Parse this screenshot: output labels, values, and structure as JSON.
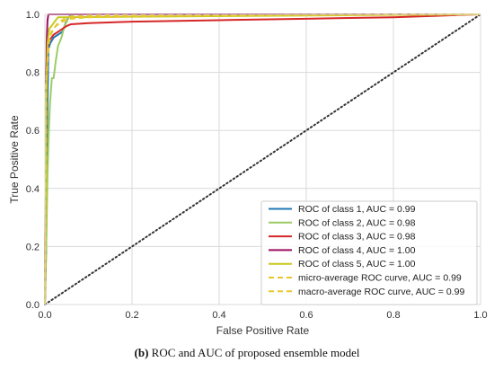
{
  "chart_data": {
    "type": "line",
    "xlabel": "False Positive Rate",
    "ylabel": "True Positive Rate",
    "xlim": [
      0.0,
      1.0
    ],
    "ylim": [
      0.0,
      1.0
    ],
    "xticks": [
      "0.0",
      "0.2",
      "0.4",
      "0.6",
      "0.8",
      "1.0"
    ],
    "yticks": [
      "0.0",
      "0.2",
      "0.4",
      "0.6",
      "0.8",
      "1.0"
    ],
    "grid": true,
    "legend_position": "bottom-right",
    "series": [
      {
        "name": "ROC of class 1, AUC = 0.99",
        "color": "#1f77b4",
        "dash": "solid",
        "x": [
          0,
          0.003,
          0.005,
          0.008,
          0.012,
          0.02,
          0.03,
          0.04,
          0.05,
          0.06,
          1.0
        ],
        "y": [
          0,
          0.2,
          0.6,
          0.88,
          0.9,
          0.92,
          0.93,
          0.94,
          0.98,
          1.0,
          1.0
        ]
      },
      {
        "name": "ROC of class 2, AUC = 0.98",
        "color": "#9ccc65",
        "dash": "solid",
        "x": [
          0,
          0.003,
          0.006,
          0.009,
          0.012,
          0.016,
          0.02,
          0.025,
          0.03,
          0.038,
          0.045,
          0.055,
          0.065,
          1.0
        ],
        "y": [
          0,
          0.2,
          0.45,
          0.6,
          0.7,
          0.78,
          0.78,
          0.84,
          0.89,
          0.92,
          0.96,
          0.99,
          1.0,
          1.0
        ]
      },
      {
        "name": "ROC of class 3, AUC = 0.98",
        "color": "#d62728",
        "dash": "solid",
        "x": [
          0,
          0.002,
          0.005,
          0.01,
          0.02,
          0.035,
          0.05,
          0.06,
          0.1,
          0.2,
          0.4,
          0.6,
          0.8,
          0.9,
          0.95,
          1.0
        ],
        "y": [
          0,
          0.75,
          0.88,
          0.91,
          0.93,
          0.945,
          0.96,
          0.966,
          0.97,
          0.975,
          0.98,
          0.985,
          0.99,
          0.995,
          0.998,
          1.0
        ]
      },
      {
        "name": "ROC of class 4, AUC = 1.00",
        "color": "#9c0f5f",
        "dash": "solid",
        "x": [
          0,
          0.002,
          0.004,
          0.006,
          0.008,
          1.0
        ],
        "y": [
          0,
          0.5,
          0.9,
          0.98,
          1.0,
          1.0
        ]
      },
      {
        "name": "ROC of class 5, AUC = 1.00",
        "color": "#c8c81e",
        "dash": "solid",
        "x": [
          0,
          0.003,
          0.006,
          0.01,
          0.02,
          0.03,
          1.0
        ],
        "y": [
          0,
          0.7,
          0.9,
          0.95,
          0.97,
          0.99,
          1.0
        ]
      },
      {
        "name": "micro-average ROC curve, AUC = 0.99",
        "color": "#e6c82e",
        "dash": "dashed",
        "x": [
          0,
          0.003,
          0.008,
          0.015,
          0.025,
          0.04,
          0.06,
          0.1,
          0.3,
          0.6,
          1.0
        ],
        "y": [
          0,
          0.75,
          0.9,
          0.94,
          0.96,
          0.975,
          0.985,
          0.99,
          0.995,
          0.998,
          1.0
        ]
      },
      {
        "name": "macro-average ROC curve, AUC = 0.99",
        "color": "#e6c82e",
        "dash": "dashed",
        "x": [
          0,
          0.004,
          0.01,
          0.02,
          0.03,
          0.045,
          0.06,
          0.1,
          0.3,
          0.6,
          1.0
        ],
        "y": [
          0,
          0.8,
          0.92,
          0.95,
          0.97,
          0.985,
          0.992,
          0.995,
          0.997,
          0.999,
          1.0
        ]
      }
    ],
    "reference_line": {
      "x": [
        0,
        1
      ],
      "y": [
        0,
        1
      ],
      "color": "#333333",
      "style": "dotted"
    }
  },
  "caption": {
    "label": "(b)",
    "text": " ROC and AUC of proposed ensemble model"
  }
}
